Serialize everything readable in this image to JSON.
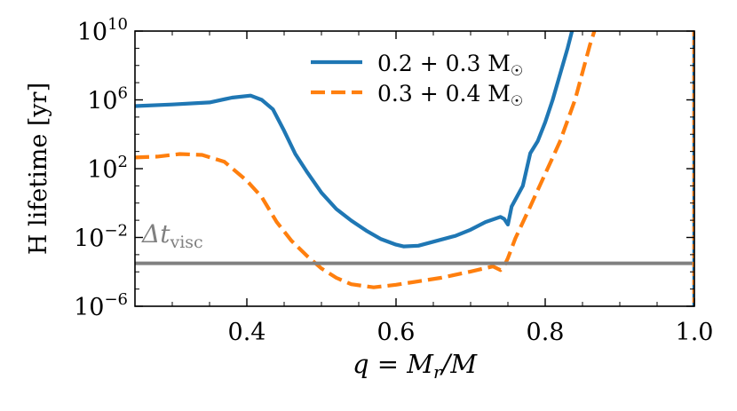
{
  "chart_data": {
    "type": "line",
    "title": "",
    "xlabel": "q = M_r/M",
    "ylabel": "H lifetime [yr]",
    "xlim": [
      0.25,
      1.0
    ],
    "ylim_log10": [
      -6,
      10
    ],
    "yscale": "log",
    "x_ticks": [
      0.4,
      0.6,
      0.8,
      1.0
    ],
    "x_tick_labels": [
      "0.4",
      "0.6",
      "0.8",
      "1.0"
    ],
    "y_ticks_log10": [
      -6,
      -2,
      2,
      6,
      10
    ],
    "y_tick_mantissa": "10",
    "y_tick_exponents": [
      "−6",
      "−2",
      "2",
      "6",
      "10"
    ],
    "legend_position": "top-center",
    "series": [
      {
        "name": "0.2 + 0.3 M☉",
        "legend_label": "0.2 + 0.3 M",
        "color": "#1f77b4",
        "style": "solid",
        "points_log10": [
          [
            0.25,
            5.64
          ],
          [
            0.3,
            5.73
          ],
          [
            0.35,
            5.85
          ],
          [
            0.38,
            6.13
          ],
          [
            0.405,
            6.25
          ],
          [
            0.42,
            6.0
          ],
          [
            0.435,
            5.45
          ],
          [
            0.45,
            4.2
          ],
          [
            0.465,
            2.85
          ],
          [
            0.48,
            1.85
          ],
          [
            0.5,
            0.6
          ],
          [
            0.52,
            -0.35
          ],
          [
            0.54,
            -1.02
          ],
          [
            0.56,
            -1.6
          ],
          [
            0.58,
            -2.1
          ],
          [
            0.6,
            -2.42
          ],
          [
            0.61,
            -2.52
          ],
          [
            0.63,
            -2.48
          ],
          [
            0.65,
            -2.25
          ],
          [
            0.68,
            -1.9
          ],
          [
            0.7,
            -1.55
          ],
          [
            0.72,
            -1.1
          ],
          [
            0.74,
            -0.8
          ],
          [
            0.745,
            -0.92
          ],
          [
            0.75,
            -1.25
          ],
          [
            0.755,
            -0.2
          ],
          [
            0.77,
            1.0
          ],
          [
            0.78,
            2.9
          ],
          [
            0.79,
            3.6
          ],
          [
            0.8,
            4.7
          ],
          [
            0.81,
            6.0
          ],
          [
            0.82,
            7.5
          ],
          [
            0.83,
            9.0
          ],
          [
            0.836,
            10.0
          ]
        ]
      },
      {
        "name": "0.3 + 0.4 M☉",
        "legend_label": "0.3 + 0.4 M",
        "color": "#ff7f0e",
        "style": "dashed",
        "points_log10": [
          [
            0.25,
            2.65
          ],
          [
            0.28,
            2.7
          ],
          [
            0.31,
            2.85
          ],
          [
            0.34,
            2.8
          ],
          [
            0.37,
            2.4
          ],
          [
            0.4,
            1.3
          ],
          [
            0.42,
            0.35
          ],
          [
            0.44,
            -1.1
          ],
          [
            0.46,
            -2.2
          ],
          [
            0.48,
            -3.05
          ],
          [
            0.5,
            -3.8
          ],
          [
            0.52,
            -4.35
          ],
          [
            0.54,
            -4.72
          ],
          [
            0.57,
            -4.9
          ],
          [
            0.6,
            -4.75
          ],
          [
            0.63,
            -4.55
          ],
          [
            0.66,
            -4.35
          ],
          [
            0.7,
            -3.98
          ],
          [
            0.73,
            -3.68
          ],
          [
            0.74,
            -3.9
          ],
          [
            0.745,
            -3.65
          ],
          [
            0.75,
            -3.2
          ],
          [
            0.76,
            -2.05
          ],
          [
            0.78,
            -0.2
          ],
          [
            0.8,
            1.7
          ],
          [
            0.82,
            3.6
          ],
          [
            0.84,
            6.0
          ],
          [
            0.85,
            7.6
          ],
          [
            0.86,
            9.2
          ],
          [
            0.866,
            10.0
          ]
        ]
      }
    ],
    "reference_line": {
      "label": "Δt",
      "subscript": "visc",
      "y_log10": -3.5,
      "color": "#808080"
    }
  }
}
